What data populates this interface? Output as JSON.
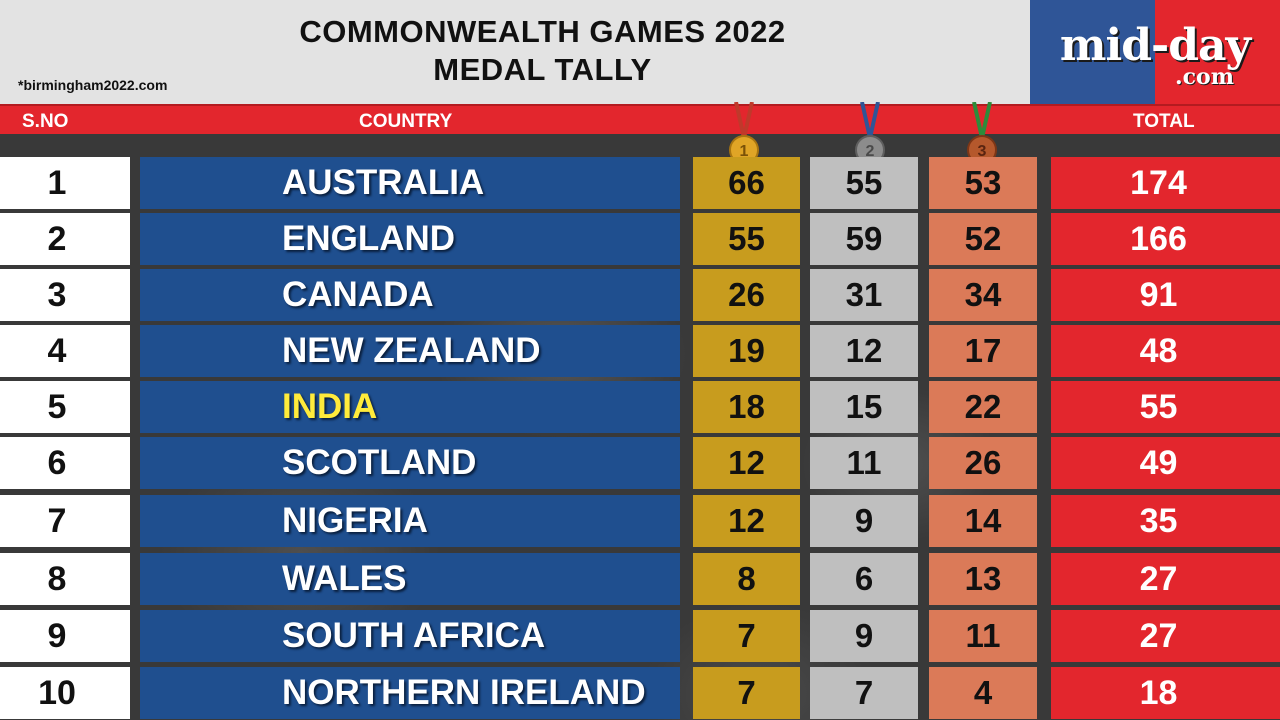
{
  "header": {
    "title_line1": "COMMONWEALTH GAMES 2022",
    "title_line2": "MEDAL TALLY",
    "source": "*birmingham2022.com"
  },
  "logo": {
    "main": "mid-day",
    "sub": ".com",
    "colors": {
      "left": "#2f5597",
      "right": "#e3262d"
    }
  },
  "columns": {
    "sno": "S.NO",
    "country": "COUNTRY",
    "total": "TOTAL"
  },
  "medals": {
    "gold": {
      "label": "1",
      "color": "#e0a526"
    },
    "silver": {
      "label": "2",
      "color": "#8c8c8c"
    },
    "bronze": {
      "label": "3",
      "color": "#b5582c"
    }
  },
  "colors": {
    "country_bg": "#1f4f8f",
    "gold_bg": "#c89c1e",
    "silver_bg": "#bfbfbf",
    "bronze_bg": "#db7a58",
    "total_bg": "#e3262d",
    "highlight_text": "#ffeb3b"
  },
  "rows": [
    {
      "sno": "1",
      "country": "AUSTRALIA",
      "gold": "66",
      "silver": "55",
      "bronze": "53",
      "total": "174",
      "highlight": false
    },
    {
      "sno": "2",
      "country": "ENGLAND",
      "gold": "55",
      "silver": "59",
      "bronze": "52",
      "total": "166",
      "highlight": false
    },
    {
      "sno": "3",
      "country": "CANADA",
      "gold": "26",
      "silver": "31",
      "bronze": "34",
      "total": "91",
      "highlight": false
    },
    {
      "sno": "4",
      "country": "NEW ZEALAND",
      "gold": "19",
      "silver": "12",
      "bronze": "17",
      "total": "48",
      "highlight": false
    },
    {
      "sno": "5",
      "country": "INDIA",
      "gold": "18",
      "silver": "15",
      "bronze": "22",
      "total": "55",
      "highlight": true
    },
    {
      "sno": "6",
      "country": "SCOTLAND",
      "gold": "12",
      "silver": "11",
      "bronze": "26",
      "total": "49",
      "highlight": false
    },
    {
      "sno": "7",
      "country": "NIGERIA",
      "gold": "12",
      "silver": "9",
      "bronze": "14",
      "total": "35",
      "highlight": false
    },
    {
      "sno": "8",
      "country": "WALES",
      "gold": "8",
      "silver": "6",
      "bronze": "13",
      "total": "27",
      "highlight": false
    },
    {
      "sno": "9",
      "country": "SOUTH AFRICA",
      "gold": "7",
      "silver": "9",
      "bronze": "11",
      "total": "27",
      "highlight": false
    },
    {
      "sno": "10",
      "country": "NORTHERN IRELAND",
      "gold": "7",
      "silver": "7",
      "bronze": "4",
      "total": "18",
      "highlight": false
    }
  ]
}
